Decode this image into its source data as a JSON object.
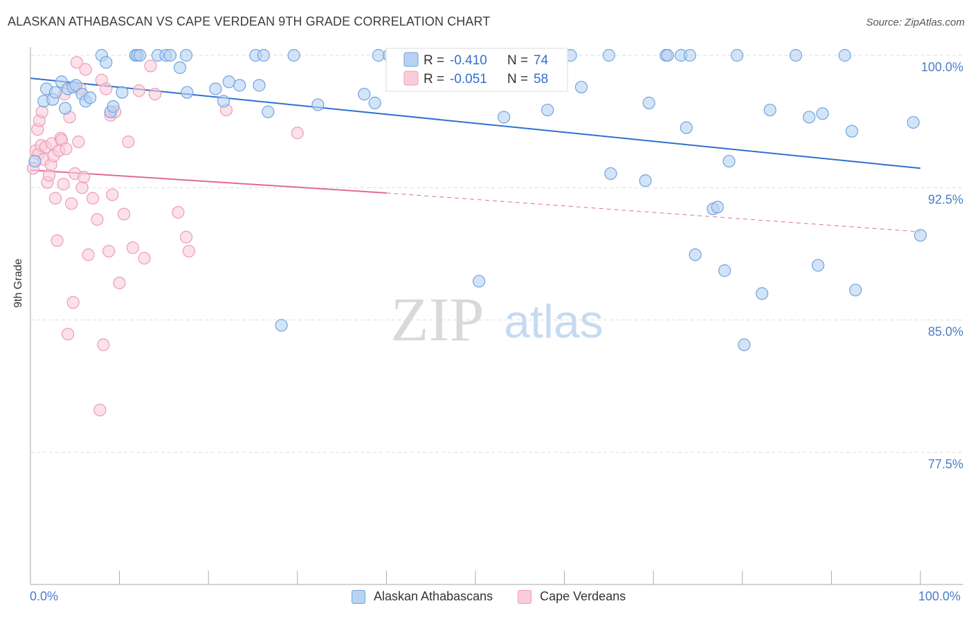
{
  "title": "ALASKAN ATHABASCAN VS CAPE VERDEAN 9TH GRADE CORRELATION CHART",
  "source": "Source: ZipAtlas.com",
  "watermark": {
    "zip": "ZIP",
    "atlas": "atlas"
  },
  "colors": {
    "blue": "#6fa3e0",
    "blue_fill": "#b8d2f2",
    "blue_line": "#2f6fd0",
    "pink": "#f09ab7",
    "pink_fill": "#f8cdd9",
    "pink_line": "#e06a94",
    "tick_text": "#4a7cc9",
    "grid": "#dddddd"
  },
  "legend_top": [
    {
      "r_label": "R = ",
      "r_value": "-0.410",
      "n_label": "N = ",
      "n_value": "74"
    },
    {
      "r_label": "R = ",
      "r_value": "-0.051",
      "n_label": "N = ",
      "n_value": "58"
    }
  ],
  "legend_bottom": [
    "Alaskan Athabascans",
    "Cape Verdeans"
  ],
  "chart_data": {
    "type": "scatter",
    "title": "ALASKAN ATHABASCAN VS CAPE VERDEAN 9TH GRADE CORRELATION CHART",
    "xlabel": "",
    "ylabel": "9th Grade",
    "xlim": [
      0,
      100
    ],
    "ylim": [
      70,
      101
    ],
    "x_tick_labels": [
      "0.0%",
      "100.0%"
    ],
    "y_ticks": [
      100.0,
      92.5,
      85.0,
      77.5
    ],
    "y_tick_labels": [
      "100.0%",
      "92.5%",
      "85.0%",
      "77.5%"
    ],
    "grid": true,
    "series": [
      {
        "name": "Alaskan Athabascans",
        "R": -0.41,
        "N": 74,
        "trend": {
          "x": [
            0,
            100
          ],
          "y": [
            98.7,
            93.6
          ]
        },
        "points": [
          [
            0.5,
            94.0
          ],
          [
            1.5,
            97.4
          ],
          [
            2.5,
            97.5
          ],
          [
            1.8,
            98.1
          ],
          [
            2.8,
            97.9
          ],
          [
            3.5,
            98.5
          ],
          [
            4.2,
            98.1
          ],
          [
            3.9,
            97.0
          ],
          [
            4.8,
            98.2
          ],
          [
            5.1,
            98.3
          ],
          [
            5.8,
            97.8
          ],
          [
            6.2,
            97.4
          ],
          [
            6.7,
            97.6
          ],
          [
            8.0,
            100.0
          ],
          [
            8.5,
            99.6
          ],
          [
            9.0,
            96.8
          ],
          [
            9.3,
            97.1
          ],
          [
            10.3,
            97.9
          ],
          [
            11.8,
            100.0
          ],
          [
            12.0,
            100.0
          ],
          [
            12.3,
            100.0
          ],
          [
            14.3,
            100.0
          ],
          [
            15.2,
            100.0
          ],
          [
            15.7,
            100.0
          ],
          [
            16.8,
            99.3
          ],
          [
            17.5,
            100.0
          ],
          [
            17.6,
            97.9
          ],
          [
            20.8,
            98.1
          ],
          [
            21.7,
            97.4
          ],
          [
            22.3,
            98.5
          ],
          [
            23.5,
            98.3
          ],
          [
            25.3,
            100.0
          ],
          [
            26.2,
            100.0
          ],
          [
            25.7,
            98.3
          ],
          [
            26.7,
            96.8
          ],
          [
            28.2,
            84.7
          ],
          [
            29.6,
            100.0
          ],
          [
            32.3,
            97.2
          ],
          [
            37.5,
            97.8
          ],
          [
            38.7,
            97.3
          ],
          [
            39.1,
            100.0
          ],
          [
            40.3,
            100.0
          ],
          [
            50.4,
            87.2
          ],
          [
            53.2,
            96.5
          ],
          [
            58.1,
            96.9
          ],
          [
            60.7,
            100.0
          ],
          [
            61.9,
            98.2
          ],
          [
            65.0,
            100.0
          ],
          [
            65.2,
            93.3
          ],
          [
            69.1,
            92.9
          ],
          [
            69.5,
            97.3
          ],
          [
            71.4,
            100.0
          ],
          [
            71.6,
            100.0
          ],
          [
            73.1,
            100.0
          ],
          [
            74.1,
            100.0
          ],
          [
            73.7,
            95.9
          ],
          [
            74.7,
            88.7
          ],
          [
            76.7,
            91.3
          ],
          [
            77.2,
            91.4
          ],
          [
            78.0,
            87.8
          ],
          [
            78.5,
            94.0
          ],
          [
            79.4,
            100.0
          ],
          [
            80.2,
            83.6
          ],
          [
            82.2,
            86.5
          ],
          [
            83.1,
            96.9
          ],
          [
            86.0,
            100.0
          ],
          [
            87.5,
            96.5
          ],
          [
            88.5,
            88.1
          ],
          [
            89.0,
            96.7
          ],
          [
            91.5,
            100.0
          ],
          [
            92.3,
            95.7
          ],
          [
            92.7,
            86.7
          ],
          [
            99.2,
            96.2
          ],
          [
            100.0,
            89.8
          ]
        ]
      },
      {
        "name": "Cape Verdeans",
        "R": -0.051,
        "N": 58,
        "trend": {
          "x": [
            0,
            40
          ],
          "y": [
            93.5,
            92.2
          ]
        },
        "trend_dashed": {
          "x": [
            40,
            100
          ],
          "y": [
            92.2,
            90.0
          ]
        },
        "points": [
          [
            0.3,
            93.6
          ],
          [
            0.6,
            94.6
          ],
          [
            0.8,
            95.8
          ],
          [
            1.0,
            96.3
          ],
          [
            0.9,
            94.4
          ],
          [
            1.2,
            94.9
          ],
          [
            1.3,
            96.8
          ],
          [
            1.5,
            94.1
          ],
          [
            1.7,
            94.8
          ],
          [
            1.9,
            92.8
          ],
          [
            2.1,
            93.2
          ],
          [
            2.3,
            93.8
          ],
          [
            2.4,
            95.0
          ],
          [
            2.6,
            94.3
          ],
          [
            2.8,
            91.9
          ],
          [
            3.0,
            89.5
          ],
          [
            3.2,
            94.6
          ],
          [
            3.4,
            95.3
          ],
          [
            3.5,
            95.2
          ],
          [
            3.7,
            92.7
          ],
          [
            3.8,
            97.8
          ],
          [
            4.0,
            94.7
          ],
          [
            4.2,
            84.2
          ],
          [
            4.4,
            96.5
          ],
          [
            4.6,
            91.6
          ],
          [
            4.8,
            86.0
          ],
          [
            5.0,
            93.3
          ],
          [
            5.2,
            99.6
          ],
          [
            5.4,
            95.1
          ],
          [
            5.6,
            98.1
          ],
          [
            5.8,
            92.5
          ],
          [
            6.0,
            93.1
          ],
          [
            6.2,
            99.2
          ],
          [
            6.5,
            88.7
          ],
          [
            7.0,
            91.9
          ],
          [
            7.5,
            90.7
          ],
          [
            7.8,
            79.9
          ],
          [
            8.0,
            98.6
          ],
          [
            8.2,
            83.6
          ],
          [
            8.5,
            98.1
          ],
          [
            8.8,
            88.9
          ],
          [
            9.0,
            96.6
          ],
          [
            9.2,
            92.1
          ],
          [
            9.5,
            96.8
          ],
          [
            10.0,
            87.1
          ],
          [
            10.5,
            91.0
          ],
          [
            11.0,
            95.1
          ],
          [
            11.5,
            89.1
          ],
          [
            12.0,
            100.0
          ],
          [
            12.2,
            98.0
          ],
          [
            12.8,
            88.5
          ],
          [
            13.5,
            99.4
          ],
          [
            14.0,
            97.8
          ],
          [
            16.6,
            91.1
          ],
          [
            17.5,
            89.7
          ],
          [
            17.8,
            88.9
          ],
          [
            22.0,
            96.9
          ],
          [
            30.0,
            95.6
          ]
        ]
      }
    ]
  }
}
